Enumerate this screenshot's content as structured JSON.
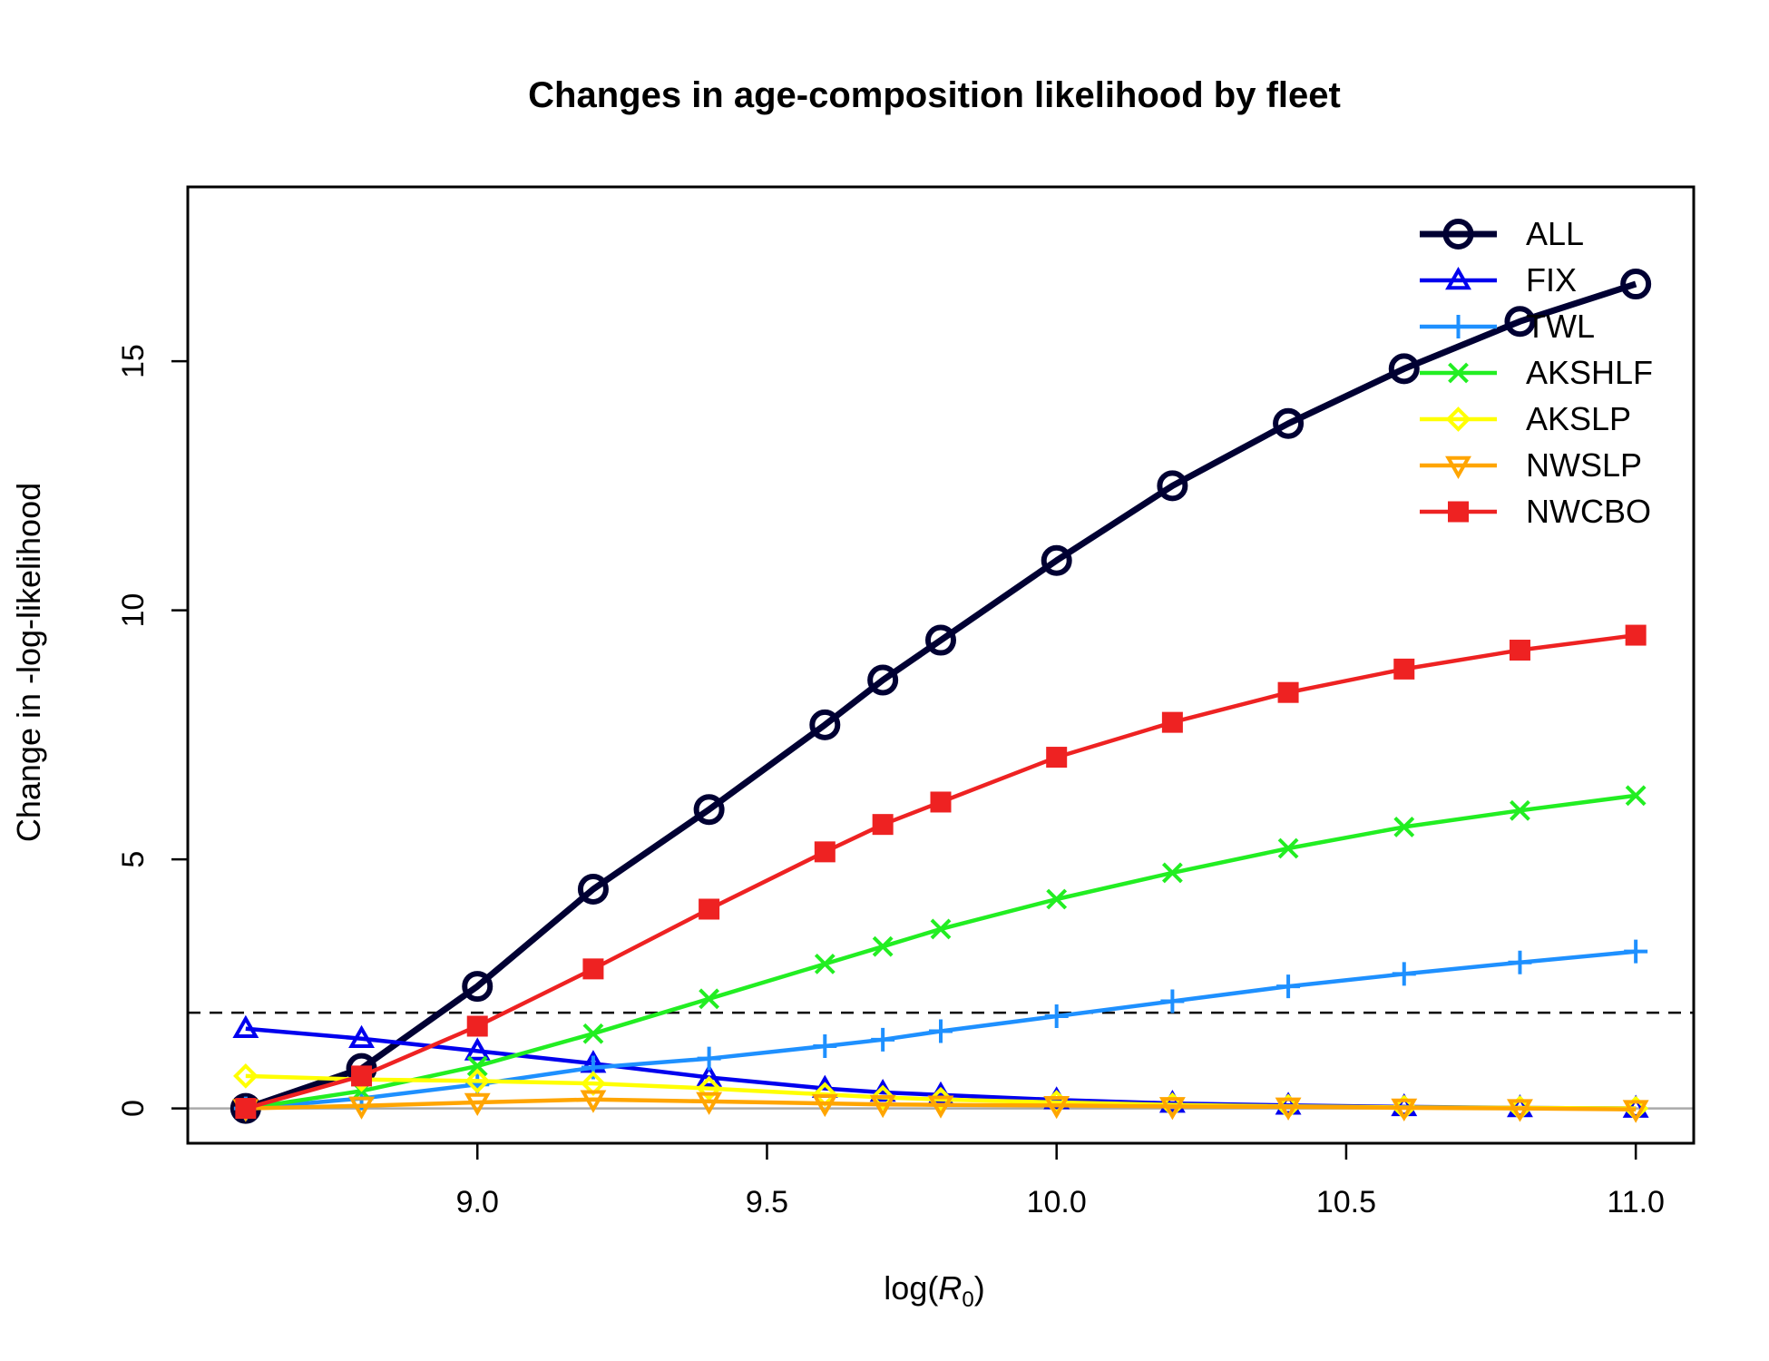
{
  "chart_data": {
    "type": "line",
    "title": "Changes in age-composition likelihood by fleet",
    "xlabel_prefix": "log(",
    "xlabel_symbol": "R",
    "xlabel_subscript": "0",
    "xlabel_suffix": ")",
    "ylabel": "Change in -log-likelihood",
    "xlim": [
      8.5,
      11.1
    ],
    "ylim": [
      -0.7,
      18.5
    ],
    "xticks": [
      9.0,
      9.5,
      10.0,
      10.5,
      11.0
    ],
    "xtick_labels": [
      "9.0",
      "9.5",
      "10.0",
      "10.5",
      "11.0"
    ],
    "yticks": [
      0,
      5,
      10,
      15
    ],
    "ytick_labels": [
      "0",
      "5",
      "10",
      "15"
    ],
    "reference_dashed": 1.92,
    "reference_zero": 0,
    "legend_position": "top-right",
    "x": [
      8.6,
      8.8,
      9.0,
      9.2,
      9.4,
      9.6,
      9.7,
      9.8,
      10.0,
      10.2,
      10.4,
      10.6,
      10.8,
      11.0
    ],
    "series": [
      {
        "name": "ALL",
        "color": "#000033",
        "marker": "circle",
        "values": [
          0.0,
          0.8,
          2.45,
          4.4,
          6.0,
          7.7,
          8.6,
          9.4,
          11.0,
          12.5,
          13.75,
          14.85,
          15.8,
          16.55
        ]
      },
      {
        "name": "FIX",
        "color": "#0000ee",
        "marker": "triangle",
        "values": [
          1.6,
          1.4,
          1.15,
          0.9,
          0.62,
          0.4,
          0.32,
          0.27,
          0.17,
          0.1,
          0.06,
          0.03,
          0.01,
          0.0
        ]
      },
      {
        "name": "TWL",
        "color": "#1e90ff",
        "marker": "plus",
        "values": [
          0.0,
          0.2,
          0.48,
          0.82,
          1.0,
          1.25,
          1.38,
          1.55,
          1.85,
          2.15,
          2.45,
          2.7,
          2.93,
          3.15
        ]
      },
      {
        "name": "AKSHLF",
        "color": "#22ee22",
        "marker": "cross",
        "values": [
          0.0,
          0.35,
          0.85,
          1.5,
          2.2,
          2.9,
          3.25,
          3.6,
          4.2,
          4.73,
          5.22,
          5.65,
          5.98,
          6.28
        ]
      },
      {
        "name": "AKSLP",
        "color": "#ffff00",
        "marker": "diamond",
        "values": [
          0.65,
          0.58,
          0.55,
          0.5,
          0.4,
          0.28,
          0.22,
          0.18,
          0.12,
          0.07,
          0.04,
          0.02,
          0.01,
          0.0
        ]
      },
      {
        "name": "NWSLP",
        "color": "#ffa500",
        "marker": "triangle-down",
        "values": [
          0.0,
          0.05,
          0.12,
          0.18,
          0.14,
          0.1,
          0.08,
          0.07,
          0.06,
          0.04,
          0.03,
          0.01,
          0.0,
          -0.02
        ]
      },
      {
        "name": "NWCBO",
        "color": "#ee2222",
        "marker": "square",
        "values": [
          0.0,
          0.65,
          1.65,
          2.8,
          4.0,
          5.15,
          5.7,
          6.15,
          7.05,
          7.75,
          8.35,
          8.82,
          9.2,
          9.5
        ]
      }
    ]
  }
}
